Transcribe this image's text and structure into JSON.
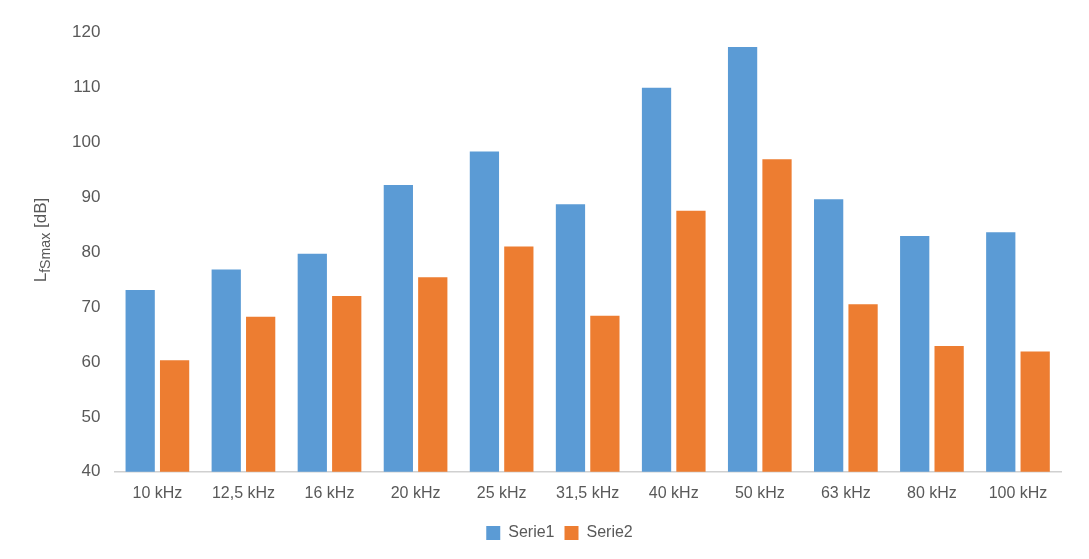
{
  "chart_data": {
    "type": "bar",
    "ylabel": "L$_{fSmax}$ [dB]",
    "categories": [
      "10 kHz",
      "12,5 kHz",
      "16 kHz",
      "20 kHz",
      "25 kHz",
      "31,5 kHz",
      "40 kHz",
      "50 kHz",
      "63 kHz",
      "80 kHz",
      "100 kHz"
    ],
    "series": [
      {
        "name": "Serie1",
        "color": "#5b9bd5",
        "values": [
          73.1,
          76.8,
          79.7,
          92.2,
          98.3,
          88.7,
          109.9,
          117.3,
          89.6,
          82.9,
          83.6
        ]
      },
      {
        "name": "Serie2",
        "color": "#ed7d31",
        "values": [
          60.3,
          68.2,
          72.0,
          75.4,
          81.0,
          68.4,
          87.5,
          96.9,
          70.5,
          62.9,
          61.9
        ]
      }
    ],
    "ylim": [
      40,
      120
    ],
    "yticks": [
      40,
      50,
      60,
      70,
      80,
      90,
      100,
      110,
      120
    ],
    "grid": false,
    "legend": "bottom"
  }
}
